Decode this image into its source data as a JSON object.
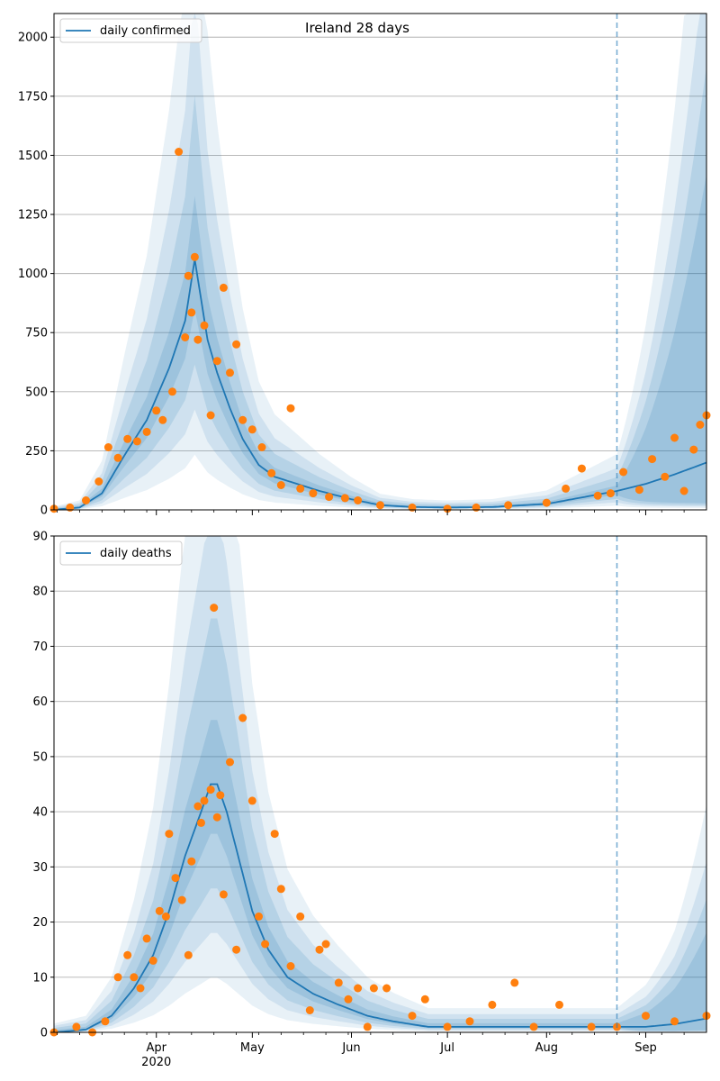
{
  "chart_data": [
    {
      "type": "line",
      "title": "Ireland 28 days",
      "legend": {
        "placement": "top-left",
        "entries": [
          "daily confirmed"
        ]
      },
      "ylim": [
        0,
        2100
      ],
      "yticks": [
        0,
        250,
        500,
        750,
        1000,
        1250,
        1500,
        1750,
        2000
      ],
      "ytick_labels": [
        "0",
        "250",
        "500",
        "750",
        "1000",
        "1250",
        "1500",
        "1750",
        "2000"
      ],
      "grid": "horizontal",
      "xrange": [
        "2020-02-29",
        "2020-09-20"
      ],
      "forecast_start": "2020-08-23",
      "series": [
        {
          "name": "daily confirmed",
          "kind": "model-line",
          "x": [
            "2020-03-01",
            "2020-03-08",
            "2020-03-15",
            "2020-03-22",
            "2020-03-29",
            "2020-04-05",
            "2020-04-10",
            "2020-04-13",
            "2020-04-17",
            "2020-04-20",
            "2020-04-24",
            "2020-04-28",
            "2020-05-03",
            "2020-05-08",
            "2020-05-15",
            "2020-05-22",
            "2020-06-01",
            "2020-06-10",
            "2020-06-20",
            "2020-07-01",
            "2020-07-15",
            "2020-08-01",
            "2020-08-15",
            "2020-08-23",
            "2020-09-01",
            "2020-09-10",
            "2020-09-20"
          ],
          "values": [
            2,
            10,
            70,
            230,
            380,
            600,
            800,
            1060,
            720,
            580,
            430,
            300,
            190,
            140,
            110,
            80,
            45,
            20,
            12,
            10,
            12,
            25,
            60,
            80,
            110,
            150,
            200
          ]
        },
        {
          "name": "",
          "kind": "observed-points",
          "x": [
            "2020-02-29",
            "2020-03-05",
            "2020-03-10",
            "2020-03-14",
            "2020-03-17",
            "2020-03-20",
            "2020-03-23",
            "2020-03-26",
            "2020-03-29",
            "2020-04-01",
            "2020-04-03",
            "2020-04-06",
            "2020-04-08",
            "2020-04-10",
            "2020-04-11",
            "2020-04-12",
            "2020-04-13",
            "2020-04-14",
            "2020-04-16",
            "2020-04-18",
            "2020-04-20",
            "2020-04-22",
            "2020-04-24",
            "2020-04-26",
            "2020-04-28",
            "2020-05-01",
            "2020-05-04",
            "2020-05-07",
            "2020-05-10",
            "2020-05-13",
            "2020-05-16",
            "2020-05-20",
            "2020-05-25",
            "2020-05-30",
            "2020-06-03",
            "2020-06-10",
            "2020-06-20",
            "2020-07-01",
            "2020-07-10",
            "2020-07-20",
            "2020-08-01",
            "2020-08-07",
            "2020-08-12",
            "2020-08-17",
            "2020-08-21",
            "2020-08-25",
            "2020-08-30",
            "2020-09-03",
            "2020-09-07",
            "2020-09-10",
            "2020-09-13",
            "2020-09-16",
            "2020-09-18",
            "2020-09-20"
          ],
          "values": [
            5,
            10,
            40,
            120,
            265,
            220,
            300,
            290,
            330,
            420,
            380,
            500,
            1515,
            730,
            990,
            835,
            1070,
            720,
            780,
            400,
            630,
            940,
            580,
            700,
            380,
            340,
            265,
            155,
            105,
            430,
            90,
            70,
            55,
            50,
            40,
            20,
            10,
            5,
            10,
            20,
            30,
            90,
            175,
            60,
            70,
            160,
            85,
            215,
            140,
            305,
            80,
            255,
            360,
            400
          ]
        }
      ],
      "bands": [
        "50%",
        "80%",
        "95%",
        "99%"
      ]
    },
    {
      "type": "line",
      "title": "",
      "legend": {
        "placement": "top-left",
        "entries": [
          "daily deaths"
        ]
      },
      "ylim": [
        0,
        90
      ],
      "yticks": [
        0,
        10,
        20,
        30,
        40,
        50,
        60,
        70,
        80,
        90
      ],
      "ytick_labels": [
        "0",
        "10",
        "20",
        "30",
        "40",
        "50",
        "60",
        "70",
        "80",
        "90"
      ],
      "grid": "horizontal",
      "xrange": [
        "2020-02-29",
        "2020-09-20"
      ],
      "xticks": [
        "2020-04-01",
        "2020-05-01",
        "2020-06-01",
        "2020-07-01",
        "2020-08-01",
        "2020-09-01"
      ],
      "xtick_labels": [
        "Apr\n2020",
        "May",
        "Jun",
        "Jul",
        "Aug",
        "Sep"
      ],
      "forecast_start": "2020-08-23",
      "series": [
        {
          "name": "daily deaths",
          "kind": "model-line",
          "x": [
            "2020-02-29",
            "2020-03-10",
            "2020-03-18",
            "2020-03-25",
            "2020-03-31",
            "2020-04-05",
            "2020-04-10",
            "2020-04-15",
            "2020-04-18",
            "2020-04-20",
            "2020-04-23",
            "2020-04-27",
            "2020-05-01",
            "2020-05-06",
            "2020-05-12",
            "2020-05-20",
            "2020-05-28",
            "2020-06-06",
            "2020-06-14",
            "2020-06-25",
            "2020-07-05",
            "2020-07-15",
            "2020-08-01",
            "2020-08-15",
            "2020-08-23",
            "2020-09-01",
            "2020-09-10",
            "2020-09-20"
          ],
          "values": [
            0,
            0.5,
            3,
            8,
            14,
            22,
            32,
            40,
            45,
            45,
            40,
            31,
            22,
            15,
            10,
            7,
            5,
            3,
            2,
            1,
            1,
            1,
            1,
            1,
            1,
            1,
            1.5,
            2.5
          ]
        },
        {
          "name": "",
          "kind": "observed-points",
          "x": [
            "2020-02-29",
            "2020-03-07",
            "2020-03-12",
            "2020-03-16",
            "2020-03-20",
            "2020-03-23",
            "2020-03-25",
            "2020-03-27",
            "2020-03-29",
            "2020-03-31",
            "2020-04-02",
            "2020-04-04",
            "2020-04-05",
            "2020-04-07",
            "2020-04-09",
            "2020-04-11",
            "2020-04-12",
            "2020-04-14",
            "2020-04-15",
            "2020-04-16",
            "2020-04-18",
            "2020-04-19",
            "2020-04-20",
            "2020-04-21",
            "2020-04-22",
            "2020-04-24",
            "2020-04-26",
            "2020-04-28",
            "2020-05-01",
            "2020-05-03",
            "2020-05-05",
            "2020-05-08",
            "2020-05-10",
            "2020-05-13",
            "2020-05-16",
            "2020-05-19",
            "2020-05-22",
            "2020-05-24",
            "2020-05-28",
            "2020-05-31",
            "2020-06-03",
            "2020-06-06",
            "2020-06-08",
            "2020-06-12",
            "2020-06-20",
            "2020-06-24",
            "2020-07-01",
            "2020-07-08",
            "2020-07-15",
            "2020-07-22",
            "2020-07-28",
            "2020-08-05",
            "2020-08-15",
            "2020-08-23",
            "2020-09-01",
            "2020-09-10",
            "2020-09-20"
          ],
          "values": [
            0,
            1,
            0,
            2,
            10,
            14,
            10,
            8,
            17,
            13,
            22,
            21,
            36,
            28,
            24,
            14,
            31,
            41,
            38,
            42,
            44,
            77,
            39,
            43,
            25,
            49,
            15,
            57,
            42,
            21,
            16,
            36,
            26,
            12,
            21,
            4,
            15,
            16,
            9,
            6,
            8,
            1,
            8,
            8,
            3,
            6,
            1,
            2,
            5,
            9,
            1,
            5,
            1,
            1,
            3,
            2,
            3
          ]
        }
      ],
      "bands": [
        "50%",
        "80%",
        "95%",
        "99%"
      ]
    }
  ]
}
